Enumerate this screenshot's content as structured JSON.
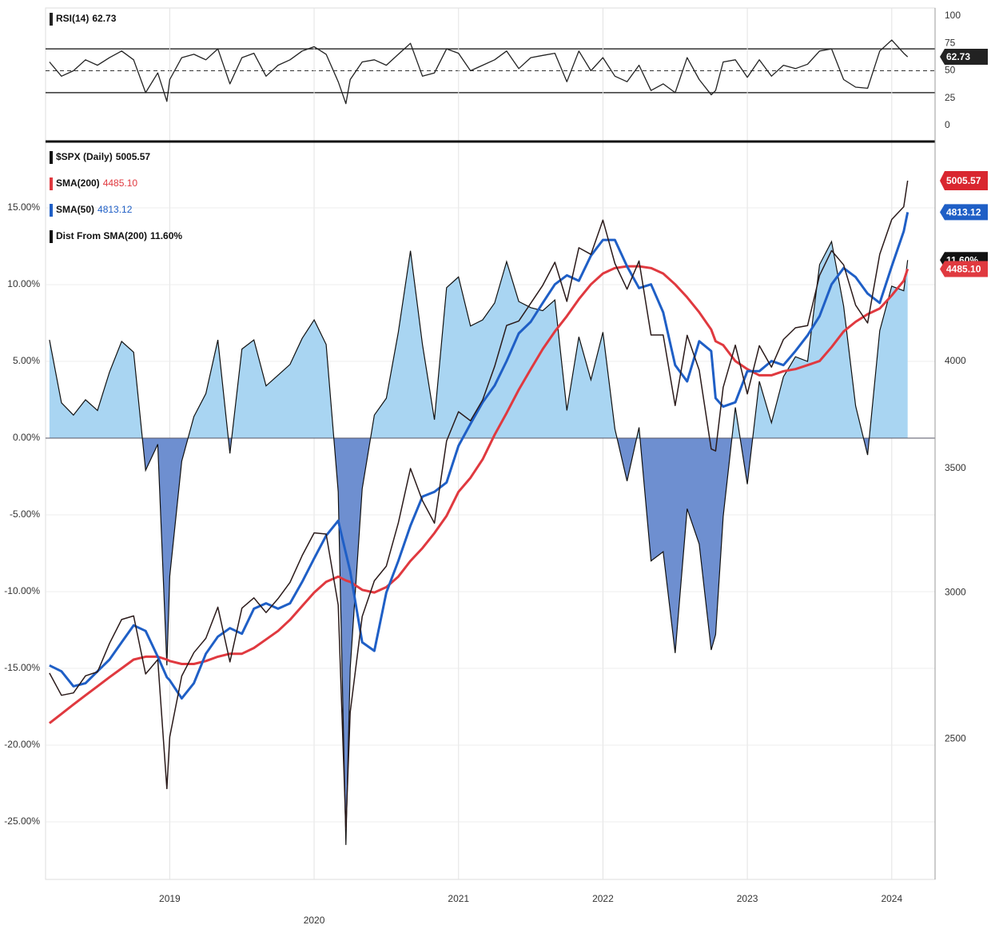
{
  "chart_data": [
    {
      "type": "line",
      "x": [
        2018.167,
        2018.25,
        2018.333,
        2018.417,
        2018.5,
        2018.583,
        2018.667,
        2018.75,
        2018.833,
        2018.917,
        2018.98,
        2019.0,
        2019.083,
        2019.167,
        2019.25,
        2019.333,
        2019.417,
        2019.5,
        2019.583,
        2019.667,
        2019.75,
        2019.833,
        2019.917,
        2020.0,
        2020.083,
        2020.167,
        2020.22,
        2020.25,
        2020.333,
        2020.417,
        2020.5,
        2020.583,
        2020.667,
        2020.75,
        2020.833,
        2020.917,
        2021.0,
        2021.083,
        2021.167,
        2021.25,
        2021.333,
        2021.417,
        2021.5,
        2021.583,
        2021.667,
        2021.75,
        2021.833,
        2021.917,
        2022.0,
        2022.083,
        2022.167,
        2022.25,
        2022.333,
        2022.417,
        2022.5,
        2022.583,
        2022.667,
        2022.75,
        2022.78,
        2022.833,
        2022.917,
        2023.0,
        2023.083,
        2023.167,
        2023.25,
        2023.333,
        2023.417,
        2023.5,
        2023.583,
        2023.667,
        2023.75,
        2023.833,
        2023.917,
        2024.0,
        2024.083,
        2024.11
      ],
      "xlim": [
        2018.14,
        2024.3
      ],
      "ylim": [
        -9.5,
        107.3
      ],
      "yticks": [
        0,
        25,
        50,
        75,
        100
      ],
      "levels": [
        30,
        70
      ],
      "midline": 50,
      "series": [
        {
          "name": "RSI(14)",
          "color": "#222222",
          "last_label": "62.73",
          "values": [
            58,
            45,
            50,
            60,
            55,
            62,
            68,
            60,
            30,
            48,
            22,
            42,
            62,
            65,
            60,
            70,
            38,
            62,
            66,
            45,
            55,
            60,
            68,
            72,
            65,
            40,
            20,
            42,
            58,
            60,
            55,
            65,
            75,
            45,
            48,
            70,
            66,
            50,
            55,
            60,
            68,
            52,
            62,
            64,
            66,
            40,
            68,
            50,
            62,
            45,
            40,
            55,
            32,
            38,
            30,
            62,
            42,
            28,
            32,
            58,
            60,
            44,
            60,
            45,
            55,
            52,
            56,
            68,
            70,
            42,
            35,
            34,
            68,
            78,
            66,
            62.73
          ]
        }
      ]
    },
    {
      "type": "line",
      "x": [
        2018.167,
        2018.25,
        2018.333,
        2018.417,
        2018.5,
        2018.583,
        2018.667,
        2018.75,
        2018.833,
        2018.917,
        2018.98,
        2019.0,
        2019.083,
        2019.167,
        2019.25,
        2019.333,
        2019.417,
        2019.5,
        2019.583,
        2019.667,
        2019.75,
        2019.833,
        2019.917,
        2020.0,
        2020.083,
        2020.167,
        2020.22,
        2020.25,
        2020.333,
        2020.417,
        2020.5,
        2020.583,
        2020.667,
        2020.75,
        2020.833,
        2020.917,
        2021.0,
        2021.083,
        2021.167,
        2021.25,
        2021.333,
        2021.417,
        2021.5,
        2021.583,
        2021.667,
        2021.75,
        2021.833,
        2021.917,
        2022.0,
        2022.083,
        2022.167,
        2022.25,
        2022.333,
        2022.417,
        2022.5,
        2022.583,
        2022.667,
        2022.75,
        2022.78,
        2022.833,
        2022.917,
        2023.0,
        2023.083,
        2023.167,
        2023.25,
        2023.333,
        2023.417,
        2023.5,
        2023.583,
        2023.667,
        2023.75,
        2023.833,
        2023.917,
        2024.0,
        2024.083,
        2024.11
      ],
      "xlim": [
        2018.14,
        2024.3
      ],
      "xticks": [
        2019,
        2020,
        2021,
        2022,
        2023,
        2024
      ],
      "ylim": [
        -28.75,
        19.27
      ],
      "yticks": [
        {
          "value": -25,
          "label": "-25.00%"
        },
        {
          "value": -20,
          "label": "-20.00%"
        },
        {
          "value": -15,
          "label": "-15.00%"
        },
        {
          "value": -10,
          "label": "-10.00%"
        },
        {
          "value": -5,
          "label": "-5.00%"
        },
        {
          "value": 0,
          "label": "0.00%"
        },
        {
          "value": 5,
          "label": "5.00%"
        },
        {
          "value": 10,
          "label": "10.00%"
        },
        {
          "value": 15,
          "label": "15.00%"
        }
      ],
      "y2lim": [
        2100,
        5250
      ],
      "y2scale": "log",
      "y2ticks": [
        2500,
        3000,
        3500,
        4000
      ],
      "grid": true,
      "series": [
        {
          "name": "Dist From SMA(200)",
          "color": "#111111",
          "kind": "area",
          "fill_above": "#a9d5f2",
          "fill_below": "#6e8fd0",
          "last_label": "11.60%",
          "values": [
            6.4,
            2.3,
            1.5,
            2.5,
            1.8,
            4.3,
            6.3,
            5.6,
            -2.1,
            -0.4,
            -14.8,
            -9.0,
            -1.5,
            1.4,
            2.9,
            6.4,
            -1.0,
            5.8,
            6.4,
            3.4,
            4.1,
            4.8,
            6.5,
            7.7,
            6.1,
            -3.5,
            -26.5,
            -15.0,
            -3.3,
            1.5,
            2.6,
            6.9,
            12.2,
            6.1,
            1.2,
            9.8,
            10.5,
            7.3,
            7.7,
            8.8,
            11.5,
            8.9,
            8.5,
            8.3,
            9.0,
            1.8,
            6.6,
            3.8,
            6.9,
            0.6,
            -2.8,
            0.7,
            -8.0,
            -7.4,
            -14.0,
            -4.6,
            -6.9,
            -13.8,
            -12.8,
            -5.1,
            2.0,
            -3.0,
            3.7,
            1.0,
            4.0,
            5.3,
            5.0,
            11.3,
            12.8,
            8.6,
            2.1,
            -1.1,
            7.0,
            9.9,
            9.6,
            11.6
          ]
        },
        {
          "name": "SMA(200)",
          "color": "#e0393f",
          "axis": "y2",
          "width": 3,
          "last_label": "4485.10",
          "values": [
            2550,
            2580,
            2610,
            2640,
            2670,
            2700,
            2730,
            2760,
            2770,
            2770,
            2760,
            2755,
            2745,
            2745,
            2755,
            2770,
            2780,
            2780,
            2800,
            2830,
            2860,
            2900,
            2950,
            3000,
            3040,
            3060,
            3045,
            3040,
            3010,
            3000,
            3020,
            3060,
            3120,
            3170,
            3230,
            3300,
            3400,
            3460,
            3540,
            3650,
            3750,
            3860,
            3960,
            4060,
            4150,
            4230,
            4320,
            4400,
            4460,
            4490,
            4500,
            4500,
            4490,
            4460,
            4400,
            4330,
            4250,
            4160,
            4100,
            4080,
            4000,
            3960,
            3930,
            3930,
            3950,
            3960,
            3980,
            4000,
            4070,
            4150,
            4200,
            4240,
            4270,
            4340,
            4420,
            4485.1
          ]
        },
        {
          "name": "SMA(50)",
          "color": "#1f5fc6",
          "axis": "y2",
          "width": 3,
          "last_label": "4813.12",
          "values": [
            2740,
            2720,
            2670,
            2680,
            2720,
            2760,
            2820,
            2880,
            2860,
            2770,
            2700,
            2690,
            2630,
            2680,
            2780,
            2840,
            2870,
            2850,
            2940,
            2960,
            2940,
            2960,
            3040,
            3130,
            3220,
            3280,
            3150,
            3080,
            2820,
            2790,
            3000,
            3120,
            3260,
            3380,
            3400,
            3440,
            3600,
            3700,
            3800,
            3880,
            4000,
            4140,
            4200,
            4300,
            4400,
            4450,
            4420,
            4560,
            4650,
            4650,
            4500,
            4380,
            4400,
            4250,
            3980,
            3900,
            4100,
            4050,
            3820,
            3780,
            3800,
            3950,
            3950,
            4000,
            3980,
            4050,
            4130,
            4230,
            4400,
            4490,
            4440,
            4350,
            4300,
            4500,
            4700,
            4813.12
          ]
        },
        {
          "name": "$SPX (Daily)",
          "color": "#2a1a1a",
          "tag_color": "#d9262f",
          "axis": "y2",
          "width": 1.5,
          "last_label": "5005.57",
          "values": [
            2714,
            2640,
            2648,
            2705,
            2718,
            2816,
            2901,
            2914,
            2711,
            2760,
            2351,
            2507,
            2704,
            2784,
            2834,
            2946,
            2752,
            2942,
            2980,
            2926,
            2977,
            3038,
            3141,
            3231,
            3226,
            2954,
            2237,
            2585,
            2912,
            3044,
            3100,
            3271,
            3500,
            3363,
            3270,
            3622,
            3756,
            3714,
            3811,
            3973,
            4181,
            4204,
            4298,
            4395,
            4523,
            4308,
            4605,
            4567,
            4766,
            4516,
            4374,
            4530,
            4132,
            4132,
            3785,
            4130,
            3955,
            3586,
            3577,
            3872,
            4080,
            3840,
            4077,
            3970,
            4109,
            4169,
            4180,
            4450,
            4589,
            4508,
            4288,
            4194,
            4568,
            4770,
            4846,
            5005.57
          ]
        }
      ]
    }
  ]
}
